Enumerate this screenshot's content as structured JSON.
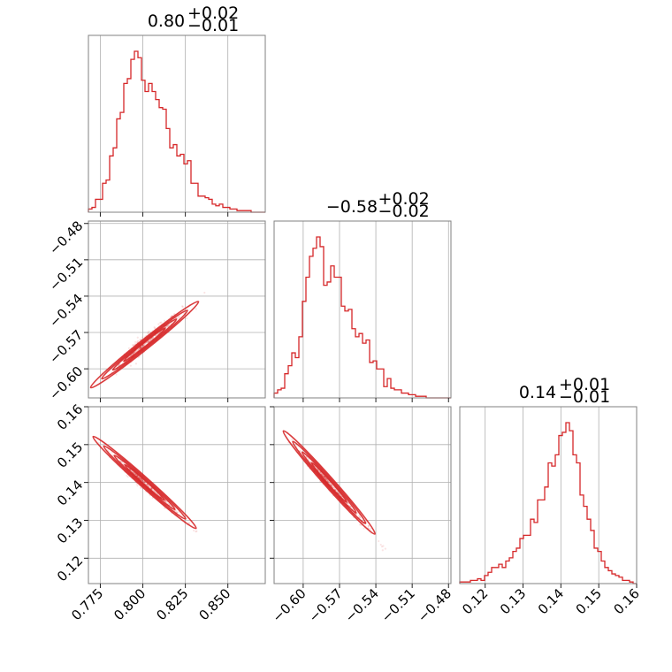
{
  "chart_data": {
    "type": "corner",
    "color": "#d62728",
    "parameters": [
      {
        "title": "0.80",
        "err_plus": "+0.02",
        "err_minus": "−0.01",
        "range": [
          0.768,
          0.872
        ],
        "ticks": [
          0.775,
          0.8,
          0.825,
          0.85
        ],
        "tick_labels": [
          "0.775",
          "0.800",
          "0.825",
          "0.850"
        ],
        "hist": [
          2,
          3,
          8,
          8,
          18,
          20,
          35,
          40,
          58,
          62,
          80,
          83,
          95,
          100,
          96,
          82,
          75,
          80,
          75,
          70,
          65,
          64,
          52,
          40,
          42,
          35,
          36,
          30,
          32,
          18,
          18,
          10,
          10,
          9,
          8,
          5,
          4,
          5,
          3,
          3,
          2,
          2,
          1,
          1,
          1,
          1,
          0,
          0,
          0,
          0
        ]
      },
      {
        "title": "−0.58",
        "err_plus": "+0.02",
        "err_minus": "−0.02",
        "range": [
          -0.624,
          -0.478
        ],
        "ticks": [
          -0.6,
          -0.57,
          -0.54,
          -0.51,
          -0.48
        ],
        "tick_labels": [
          "−0.60",
          "−0.57",
          "−0.54",
          "−0.51",
          "−0.48"
        ],
        "hist": [
          3,
          5,
          6,
          15,
          20,
          28,
          25,
          38,
          60,
          75,
          88,
          93,
          100,
          94,
          70,
          72,
          82,
          75,
          75,
          57,
          54,
          55,
          43,
          38,
          40,
          34,
          36,
          22,
          23,
          18,
          18,
          7,
          12,
          6,
          5,
          5,
          3,
          3,
          2,
          2,
          1,
          1,
          1,
          0,
          0,
          0,
          0,
          0,
          0,
          0
        ]
      },
      {
        "title": "0.14",
        "err_plus": "+0.01",
        "err_minus": "−0.01",
        "range": [
          0.1133,
          0.16
        ],
        "ticks": [
          0.12,
          0.13,
          0.14,
          0.15,
          0.16
        ],
        "tick_labels": [
          "0.12",
          "0.13",
          "0.14",
          "0.15",
          "0.16"
        ],
        "hist": [
          1,
          1,
          1,
          2,
          2,
          3,
          2,
          5,
          7,
          10,
          10,
          12,
          10,
          14,
          16,
          20,
          22,
          28,
          30,
          30,
          40,
          38,
          52,
          52,
          60,
          75,
          73,
          80,
          92,
          94,
          100,
          95,
          80,
          75,
          55,
          48,
          40,
          33,
          22,
          20,
          14,
          10,
          8,
          6,
          5,
          4,
          2,
          2,
          1,
          0
        ]
      }
    ],
    "pairs": [
      {
        "x_param": 0,
        "y_param": 1,
        "relation": "positive-linear",
        "center": [
          0.8,
          -0.58
        ],
        "slope": 1.12,
        "width": 0.0016
      },
      {
        "x_param": 0,
        "y_param": 2,
        "relation": "negative-linear",
        "center": [
          0.8,
          0.14
        ],
        "slope": -0.4,
        "width": 0.0012
      },
      {
        "x_param": 1,
        "y_param": 2,
        "relation": "negative-linear",
        "center": [
          -0.58,
          0.14
        ],
        "slope": -0.36,
        "width": 0.0012
      }
    ],
    "grid": true
  }
}
